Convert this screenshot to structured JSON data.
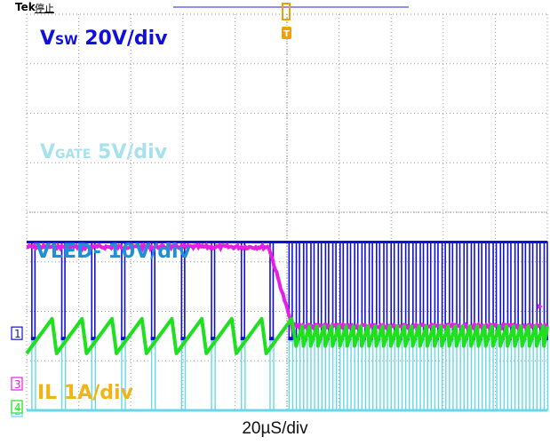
{
  "header": {
    "brand": "Tek",
    "status": "停止"
  },
  "trigger_marker": "T",
  "timebase_label": "20µS/div",
  "colors": {
    "ch1": "#1010d8",
    "ch2": "#66d8e8",
    "ch3": "#e61ee6",
    "ch4": "#1ee01e",
    "label_vgate": "#a6e2ec",
    "label_vled": "#1e90d8",
    "label_il": "#f0b414",
    "grid": "#9a9a9a",
    "trigger": "#f0a000",
    "header_line": "#6a6af0"
  },
  "chart_data": {
    "type": "line",
    "title": "",
    "xlabel": "20µS/div",
    "ylabel": "",
    "x_divisions": 10,
    "y_divisions": 8,
    "x_unit": "µs",
    "xlim": [
      -100,
      100
    ],
    "trigger_time_us": 0,
    "grid": true,
    "legend": "inline",
    "series": [
      {
        "name": "Vsw 20V/div",
        "label_main": "V",
        "label_sub": "SW",
        "label_rest": " 20V/div",
        "channel": "1",
        "icon": "ch1-ground-marker",
        "color": "#1010d8",
        "waveform": "pulse",
        "high_level_div": 3.4,
        "low_level_div": 1.45,
        "pulse_times_us": [
          -98,
          -86.5,
          -75,
          -63.5,
          -52,
          -40.5,
          -29,
          -17.5,
          -6.5,
          0.8,
          3.6,
          6.4,
          9.2,
          12.0,
          14.8,
          17.6,
          20.4,
          23.2,
          26.0,
          28.8,
          31.6,
          34.4,
          37.2,
          40.0,
          42.8,
          45.6,
          48.4,
          51.2,
          54.0,
          56.8,
          59.6,
          62.4,
          65.2,
          68.0,
          70.8,
          73.6,
          76.4,
          79.2,
          82.0,
          84.8,
          87.6,
          90.4,
          93.2,
          96.0,
          98.8
        ],
        "pulse_width_us": 1.2
      },
      {
        "name": "VGATE 5V/div",
        "label_main": "V",
        "label_sub": "GATE",
        "label_rest": " 5V/div",
        "channel": "2",
        "icon": "ch2-ground-marker",
        "color": "#66d8e8",
        "waveform": "pulse",
        "high_level_div": 1.4,
        "low_level_div": 0.0,
        "pulse_times_us": [
          -98,
          -86.5,
          -75,
          -63.5,
          -52,
          -40.5,
          -29,
          -17.5,
          -6.5,
          0.8,
          3.6,
          6.4,
          9.2,
          12.0,
          14.8,
          17.6,
          20.4,
          23.2,
          26.0,
          28.8,
          31.6,
          34.4,
          37.2,
          40.0,
          42.8,
          45.6,
          48.4,
          51.2,
          54.0,
          56.8,
          59.6,
          62.4,
          65.2,
          68.0,
          70.8,
          73.6,
          76.4,
          79.2,
          82.0,
          84.8,
          87.6,
          90.4,
          93.2,
          96.0,
          98.8
        ],
        "pulse_width_us": 1.4
      },
      {
        "name": "VLED- 10V/div",
        "label_main": "VLED- 10V/div",
        "label_sub": "",
        "label_rest": "",
        "channel": "3",
        "icon": "ch3-ground-marker",
        "color": "#e61ee6",
        "waveform": "step",
        "initial_level_div": 3.3,
        "final_level_div": 1.7,
        "transition_start_us": -7,
        "transition_end_us": 2
      },
      {
        "name": "IL 1A/div",
        "label_main": "IL 1A/div",
        "label_sub": "",
        "label_rest": "",
        "channel": "4",
        "icon": "ch4-ground-marker",
        "color": "#1ee01e",
        "waveform": "sawtooth",
        "center_level_div": 1.5,
        "ripple_before_div": 0.35,
        "ripple_after_div": 0.2,
        "period_before_us": 11.5,
        "period_after_us": 2.8,
        "change_time_us": 0
      }
    ]
  }
}
